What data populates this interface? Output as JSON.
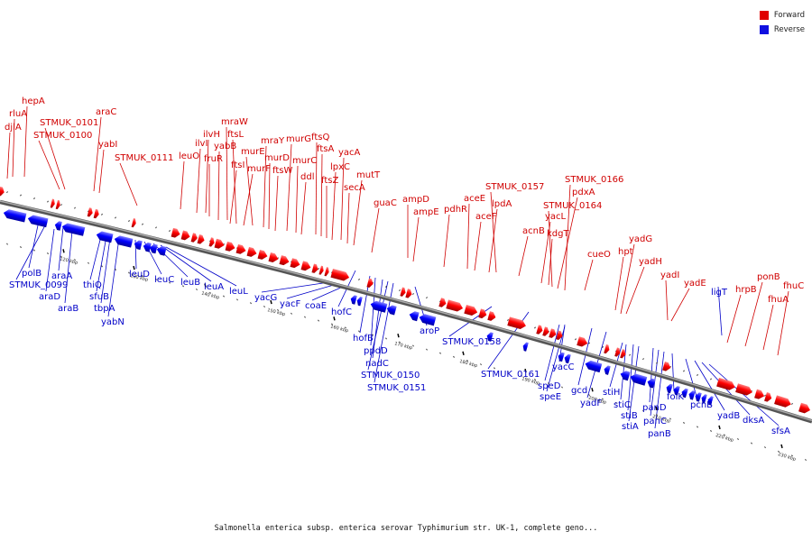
{
  "caption": "Salmonella enterica subsp. enterica serovar Typhimurium str. UK-1, complete geno...",
  "legend": [
    {
      "label": "Forward",
      "color": "#e00000"
    },
    {
      "label": "Reverse",
      "color": "#1010e0"
    }
  ],
  "colors": {
    "forward": "#ff0000",
    "reverse": "#0000ff",
    "backbone": "#7a7a7a"
  },
  "scale": {
    "ticks": [
      "120 kbp",
      "130 kbp",
      "140 kbp",
      "150 kbp",
      "160 kbp",
      "170 kbp",
      "180 kbp",
      "190 kbp",
      "200 kbp",
      "210 kbp",
      "220 kbp",
      "230 kbp"
    ]
  },
  "forward_labels": [
    "djlA",
    "rluA",
    "hepA",
    "STMUK_0101",
    "STMUK_0100",
    "araC",
    "yabI",
    "STMUK_0111",
    "leuO",
    "ilvI",
    "ilvH",
    "fruR",
    "yabB",
    "mraW",
    "ftsI",
    "ftsL",
    "murF",
    "murE",
    "mraY",
    "murD",
    "ftsW",
    "murG",
    "murC",
    "ddl",
    "ftsQ",
    "ftsA",
    "ftsZ",
    "lpxC",
    "yacA",
    "secA",
    "mutT",
    "guaC",
    "ampD",
    "ampE",
    "pdhR",
    "aceE",
    "aceF",
    "lpdA",
    "STMUK_0157",
    "acnB",
    "yacL",
    "kdgT",
    "STMUK_0164",
    "pdxA",
    "STMUK_0166",
    "cueO",
    "hpt",
    "yadG",
    "yadH",
    "yadI",
    "yadE",
    "hrpB",
    "ponB",
    "fhuA",
    "fhuC"
  ],
  "reverse_labels": [
    "polB",
    "STMUK_0099",
    "araA",
    "araD",
    "araB",
    "thiQ",
    "sfuB",
    "tbpA",
    "yabN",
    "leuD",
    "leuC",
    "leuB",
    "leuA",
    "leuL",
    "yacG",
    "yacF",
    "coaE",
    "hofC",
    "hofB",
    "ppdD",
    "nadC",
    "STMUK_0150",
    "STMUK_0151",
    "aroP",
    "STMUK_0158",
    "STMUK_0161",
    "yacC",
    "speD",
    "speE",
    "gcd",
    "yadF",
    "stiH",
    "stiC",
    "stiB",
    "stiA",
    "panD",
    "panC",
    "panB",
    "folK",
    "pcnB",
    "yadB",
    "dksA",
    "sfsA",
    "ligT"
  ]
}
